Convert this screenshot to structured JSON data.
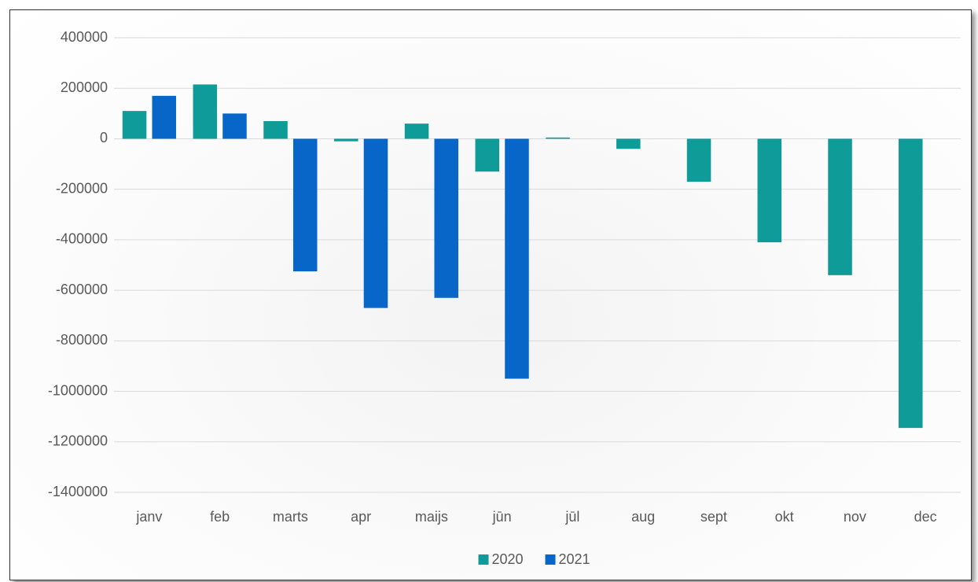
{
  "chart_data": {
    "type": "bar",
    "categories": [
      "janv",
      "feb",
      "marts",
      "apr",
      "maijs",
      "jūn",
      "jūl",
      "aug",
      "sept",
      "okt",
      "nov",
      "dec"
    ],
    "series": [
      {
        "name": "2020",
        "color": "#0f9b98",
        "values": [
          110000,
          215000,
          70000,
          -10000,
          60000,
          -130000,
          5000,
          -40000,
          -170000,
          -410000,
          -540000,
          -1145000
        ]
      },
      {
        "name": "2021",
        "color": "#0866c9",
        "values": [
          170000,
          100000,
          -525000,
          -670000,
          -630000,
          -950000,
          null,
          null,
          null,
          null,
          null,
          null
        ]
      }
    ],
    "ylim": [
      -1400000,
      400000
    ],
    "yticks": [
      -1400000,
      -1200000,
      -1000000,
      -800000,
      -600000,
      -400000,
      -200000,
      0,
      200000,
      400000
    ],
    "grid": true,
    "legend": "bottom"
  }
}
